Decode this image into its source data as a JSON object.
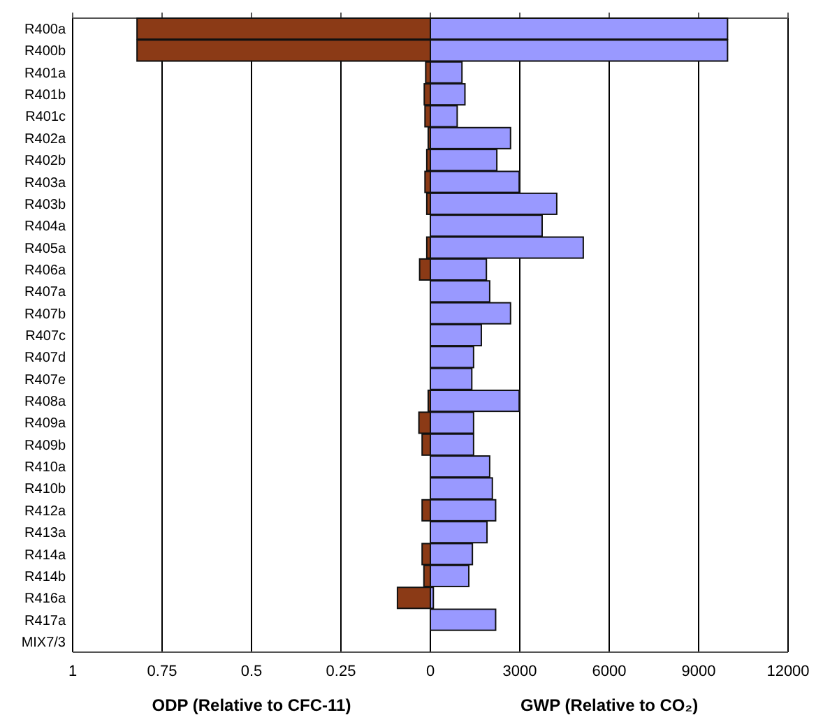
{
  "chart_data": [
    {
      "type": "bar",
      "orientation": "horizontal",
      "xlabel": "ODP (Relative to CFC-11)",
      "categories": [
        "R400a",
        "R400b",
        "R401a",
        "R401b",
        "R401c",
        "R402a",
        "R402b",
        "R403a",
        "R403b",
        "R404a",
        "R405a",
        "R406a",
        "R407a",
        "R407b",
        "R407c",
        "R407d",
        "R407e",
        "R408a",
        "R409a",
        "R409b",
        "R410a",
        "R410b",
        "R412a",
        "R413a",
        "R414a",
        "R414b",
        "R416a",
        "R417a",
        "MIX7/3"
      ],
      "values": [
        0.82,
        0.82,
        0.013,
        0.017,
        0.015,
        0.006,
        0.01,
        0.015,
        0.01,
        0,
        0.01,
        0.03,
        0,
        0,
        0,
        0,
        0,
        0.006,
        0.032,
        0.023,
        0,
        0,
        0.023,
        0,
        0.023,
        0.018,
        0.092,
        0,
        0
      ],
      "color": "#8b3a16",
      "xlim": [
        1,
        0
      ],
      "xticks": [
        1,
        0.75,
        0.5,
        0.25,
        0
      ],
      "grid": "x"
    },
    {
      "type": "bar",
      "orientation": "horizontal",
      "xlabel": "GWP (Relative to CO₂)",
      "categories": [
        null,
        null,
        null,
        null,
        null,
        null,
        null,
        null,
        null,
        null,
        null,
        null,
        null,
        null,
        null,
        null,
        null,
        null,
        null,
        null,
        null,
        null,
        null,
        null,
        null,
        null,
        null,
        null,
        null
      ],
      "values": [
        9970,
        9970,
        1060,
        1160,
        900,
        2690,
        2230,
        2980,
        4240,
        3750,
        5130,
        1880,
        1990,
        2690,
        1710,
        1450,
        1390,
        2980,
        1450,
        1450,
        1990,
        2080,
        2190,
        1900,
        1410,
        1290,
        100,
        2190,
        0
      ],
      "color": "#9999ff",
      "xlim": [
        0,
        12000
      ],
      "xticks": [
        {
          "value": 0,
          "label": null
        },
        3000,
        6000,
        9000,
        12000
      ],
      "grid": "x"
    }
  ]
}
